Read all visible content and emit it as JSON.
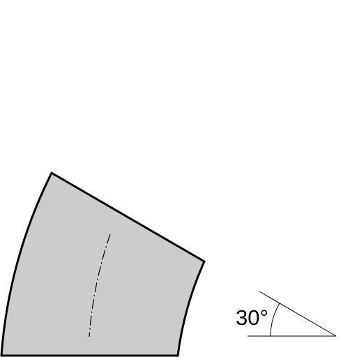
{
  "diagram": {
    "angle_label": "30°",
    "bend_angle_degrees": 30,
    "colors": {
      "fill": "#cccccc",
      "stroke": "#000000",
      "background": "#ffffff"
    }
  }
}
